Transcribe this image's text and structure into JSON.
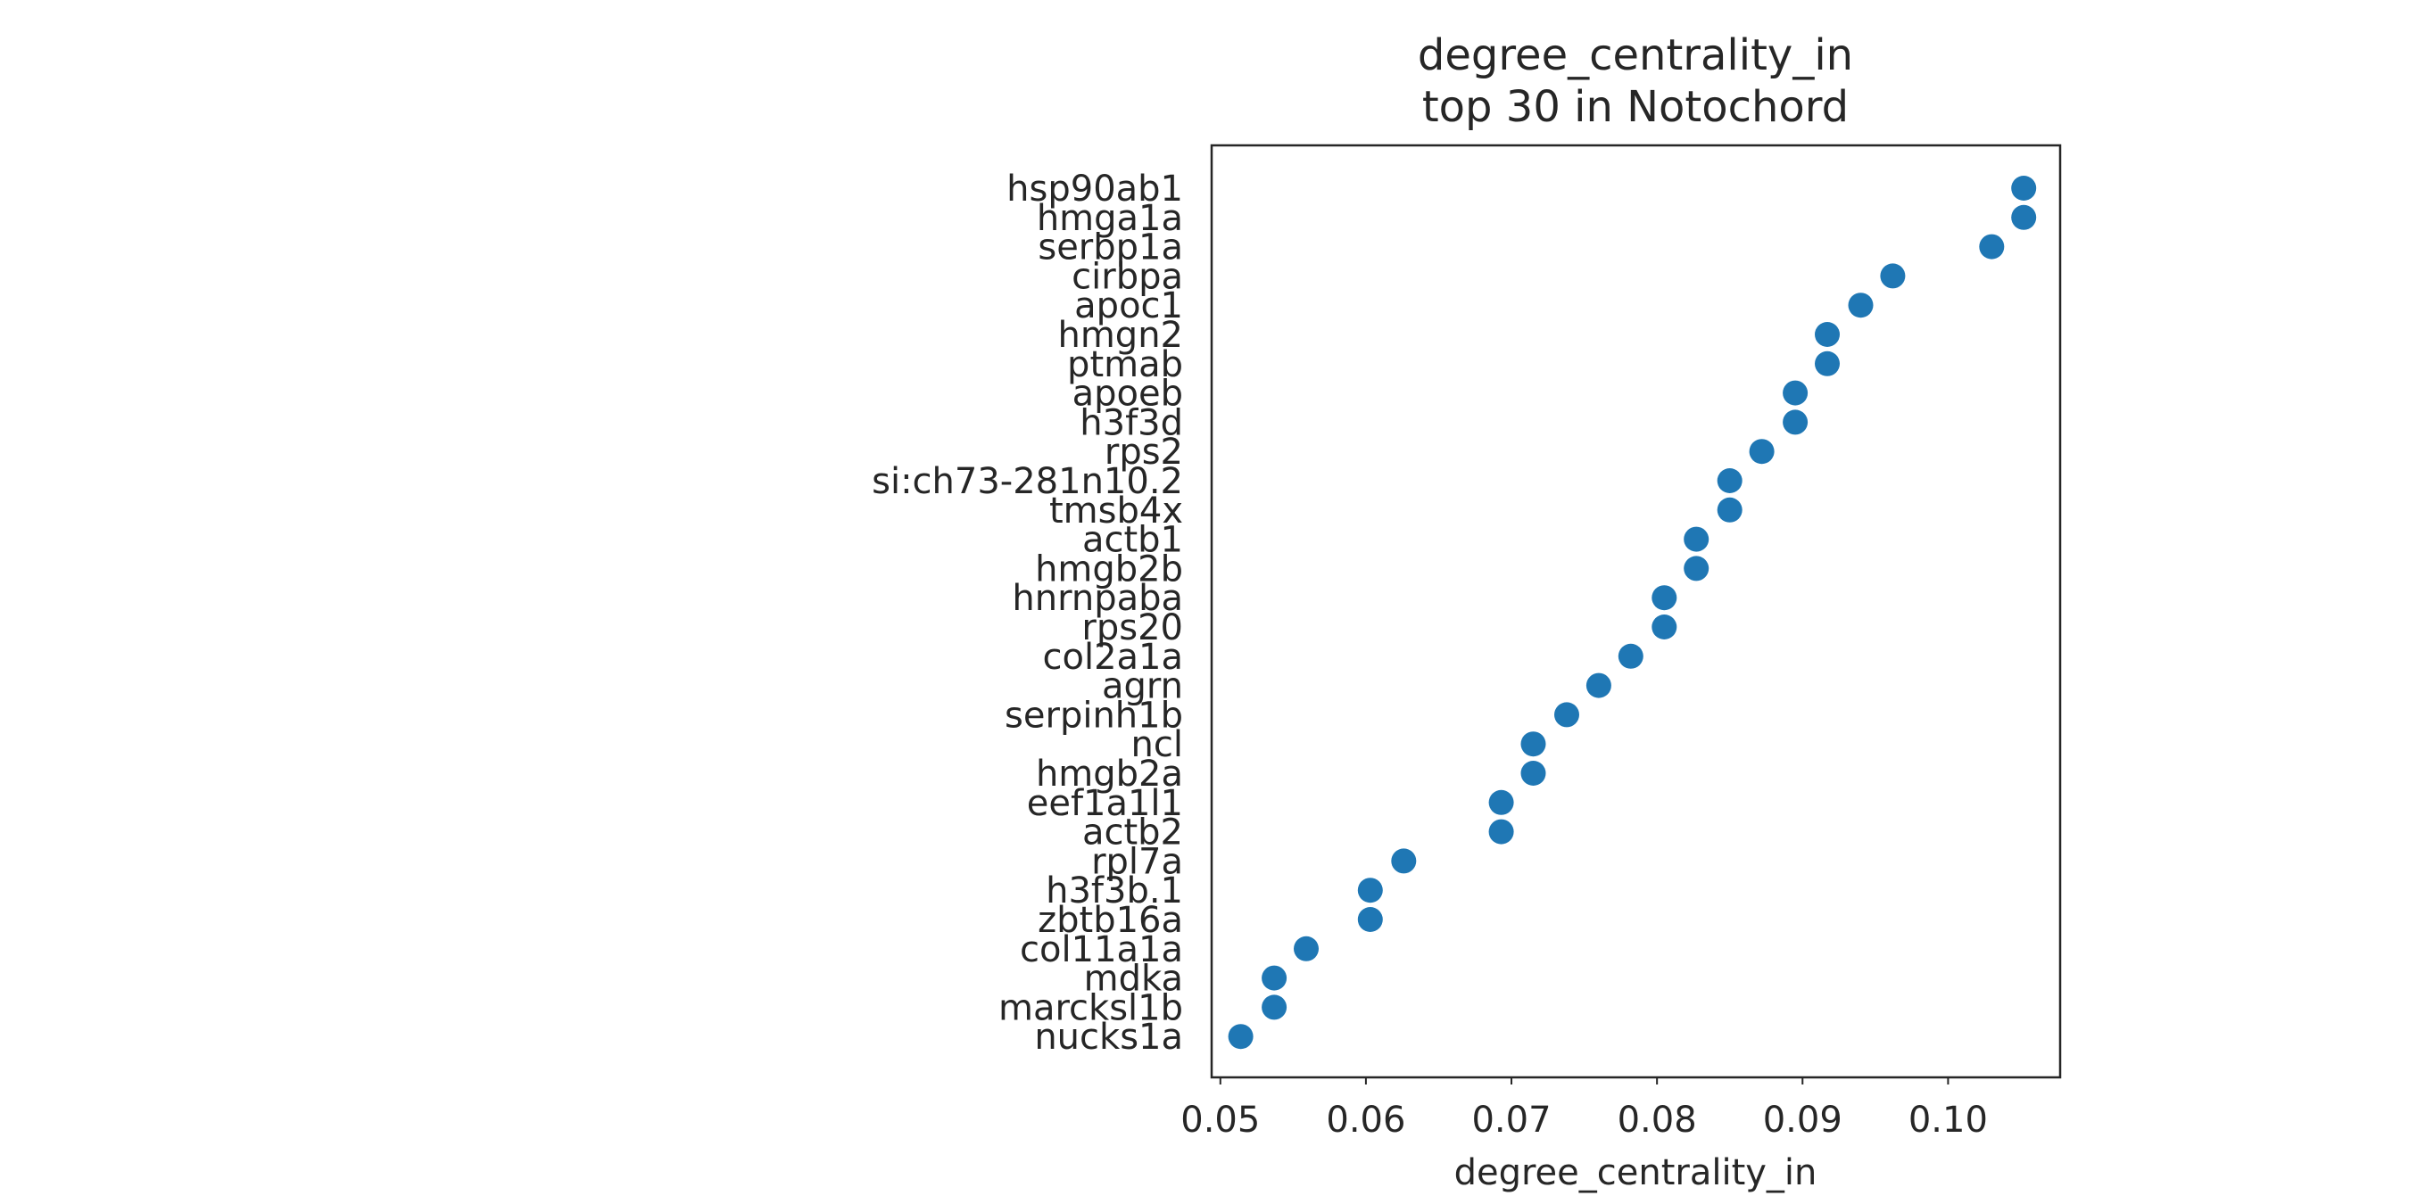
{
  "chart_data": {
    "type": "scatter",
    "title": "degree_centrality_in",
    "subtitle": "top 30 in Notochord",
    "xlabel": "degree_centrality_in",
    "ylabel": "",
    "xlim": [
      0.0494,
      0.1077
    ],
    "xticks": [
      "0.05",
      "0.06",
      "0.07",
      "0.08",
      "0.09",
      "0.10"
    ],
    "grid": false,
    "marker_color": "#1f77b4",
    "categories": [
      "hsp90ab1",
      "hmga1a",
      "serbp1a",
      "cirbpa",
      "apoc1",
      "hmgn2",
      "ptmab",
      "apoeb",
      "h3f3d",
      "rps2",
      "si:ch73-281n10.2",
      "tmsb4x",
      "actb1",
      "hmgb2b",
      "hnrnpaba",
      "rps20",
      "col2a1a",
      "agrn",
      "serpinh1b",
      "ncl",
      "hmgb2a",
      "eef1a1l1",
      "actb2",
      "rpl7a",
      "h3f3b.1",
      "zbtb16a",
      "col11a1a",
      "mdka",
      "marcksl1b",
      "nucks1a"
    ],
    "values": [
      0.1052,
      0.1052,
      0.103,
      0.0962,
      0.094,
      0.0917,
      0.0917,
      0.0895,
      0.0895,
      0.0872,
      0.085,
      0.085,
      0.0827,
      0.0827,
      0.0805,
      0.0805,
      0.0782,
      0.076,
      0.0738,
      0.0715,
      0.0715,
      0.0693,
      0.0693,
      0.0626,
      0.0603,
      0.0603,
      0.0559,
      0.0537,
      0.0537,
      0.0514
    ]
  }
}
